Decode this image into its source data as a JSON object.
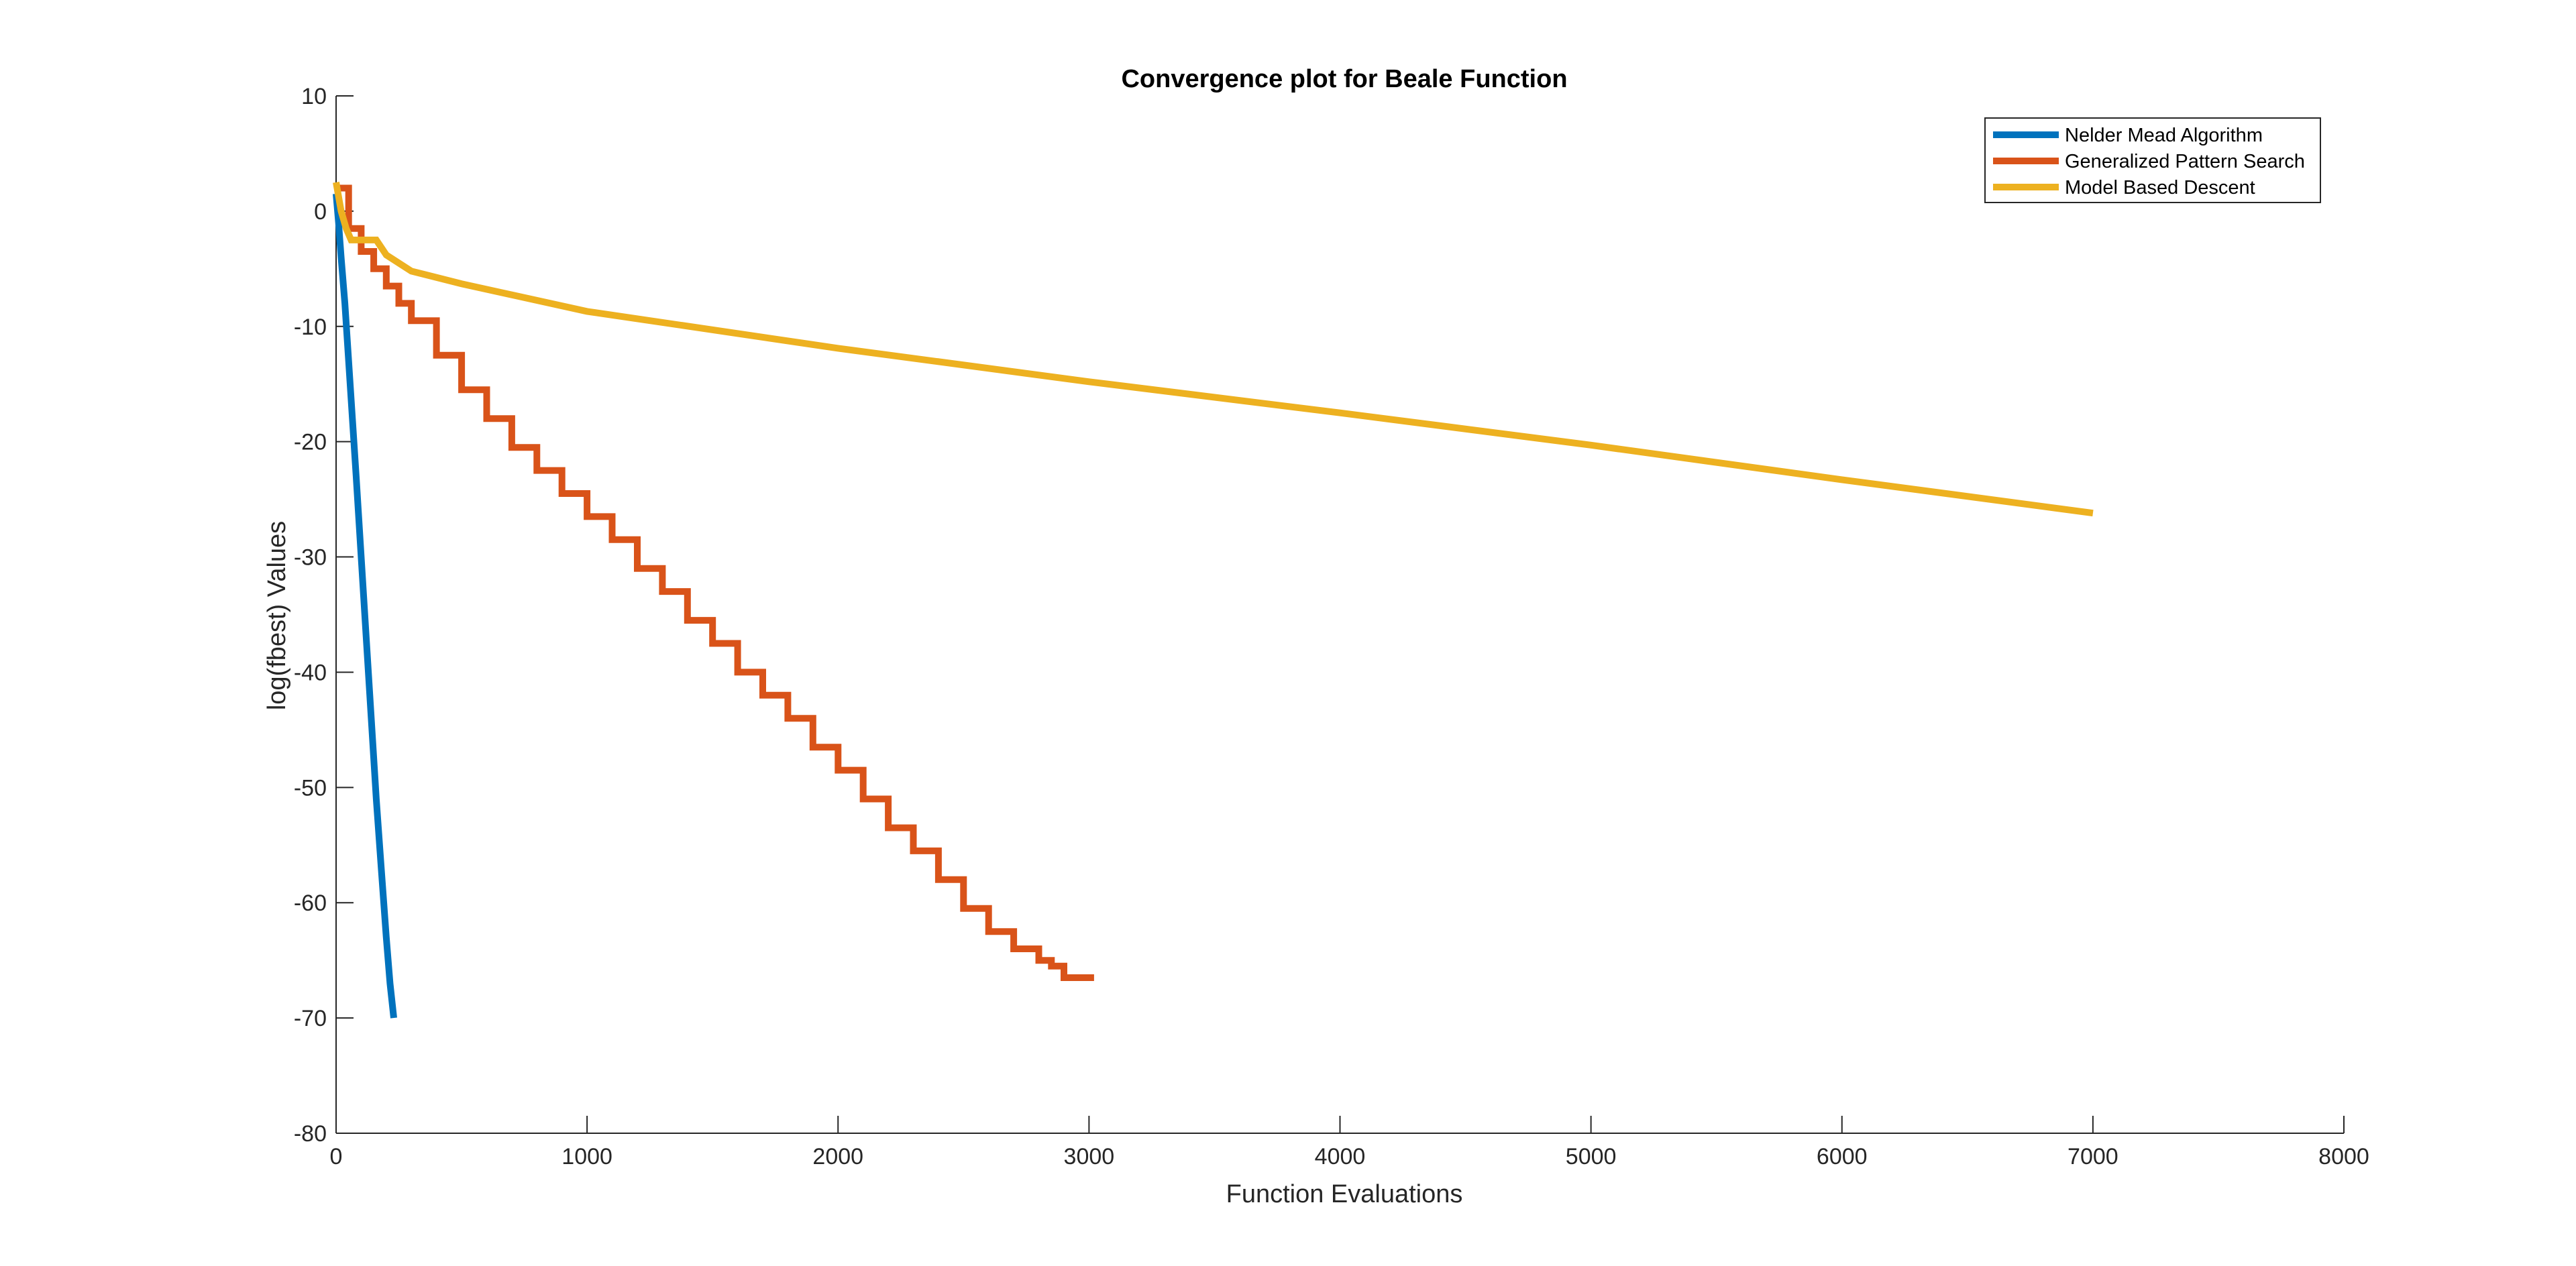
{
  "chart_data": {
    "type": "line",
    "title": "Convergence plot for Beale Function",
    "xlabel": "Function Evaluations",
    "ylabel": "log(fbest) Values",
    "xlim": [
      0,
      8000
    ],
    "ylim": [
      -80,
      10
    ],
    "x_ticks": [
      0,
      1000,
      2000,
      3000,
      4000,
      5000,
      6000,
      7000,
      8000
    ],
    "y_ticks": [
      10,
      0,
      -10,
      -20,
      -30,
      -40,
      -50,
      -60,
      -70,
      -80
    ],
    "grid": false,
    "legend_position": "top-right",
    "series": [
      {
        "name": "Nelder Mead Algorithm",
        "color": "#0072BD",
        "step": false,
        "x": [
          0,
          10,
          20,
          35,
          50,
          65,
          80,
          100,
          120,
          140,
          160,
          180,
          200,
          215,
          230
        ],
        "y": [
          1.5,
          -1,
          -4,
          -8,
          -13,
          -18,
          -23,
          -30,
          -37,
          -44,
          -51,
          -57,
          -63,
          -67,
          -70
        ]
      },
      {
        "name": "Generalized Pattern Search",
        "color": "#D95319",
        "step": true,
        "x": [
          0,
          50,
          100,
          150,
          200,
          250,
          300,
          400,
          500,
          600,
          700,
          800,
          900,
          1000,
          1100,
          1200,
          1300,
          1400,
          1500,
          1600,
          1700,
          1800,
          1900,
          2000,
          2100,
          2200,
          2300,
          2400,
          2500,
          2600,
          2700,
          2800,
          2850,
          2900,
          2950,
          3000,
          3020
        ],
        "y": [
          2,
          -1.5,
          -3.5,
          -5,
          -6.5,
          -8,
          -9.5,
          -12.5,
          -15.5,
          -18,
          -20.5,
          -22.5,
          -24.5,
          -26.5,
          -28.5,
          -31,
          -33,
          -35.5,
          -37.5,
          -40,
          -42,
          -44,
          -46.5,
          -48.5,
          -51,
          -53.5,
          -55.5,
          -58,
          -60.5,
          -62.5,
          -64,
          -65,
          -65.5,
          -66.5,
          -66.5,
          -66.5,
          -66.5
        ]
      },
      {
        "name": "Model Based Descent",
        "color": "#EDB120",
        "step": false,
        "x": [
          0,
          20,
          40,
          60,
          80,
          100,
          120,
          140,
          160,
          200,
          300,
          500,
          1000,
          2000,
          3000,
          4000,
          5000,
          6000,
          7000
        ],
        "y": [
          2.5,
          0,
          -1.5,
          -2.5,
          -2.5,
          -2.5,
          -2.5,
          -2.5,
          -2.5,
          -3.8,
          -5.2,
          -6.3,
          -8.7,
          -11.9,
          -14.8,
          -17.5,
          -20.3,
          -23.3,
          -26.2
        ]
      }
    ]
  }
}
